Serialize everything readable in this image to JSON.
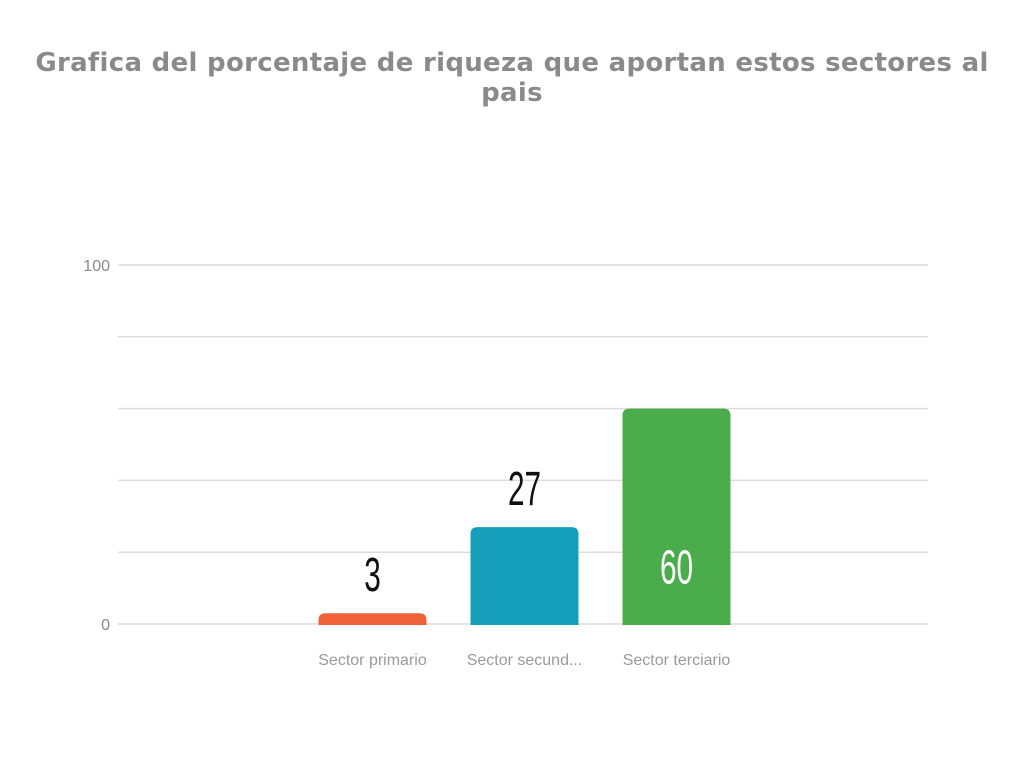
{
  "chart_data": {
    "type": "bar",
    "title": "Grafica del porcentaje de riqueza que aportan estos sectores al pais",
    "categories": [
      "Sector primario",
      "Sector secund...",
      "Sector terciario"
    ],
    "values": [
      3,
      27,
      60
    ],
    "colors": [
      "#ee6139",
      "#159fba",
      "#4aac4b"
    ],
    "label_colors": [
      "#111111",
      "#111111",
      "#ffffff"
    ],
    "label_inside": [
      false,
      false,
      true
    ],
    "ylim": [
      0,
      100
    ],
    "yticks_labeled": [
      "0",
      "100"
    ],
    "grid_steps": 5,
    "grid": true,
    "xlabel": "",
    "ylabel": ""
  }
}
